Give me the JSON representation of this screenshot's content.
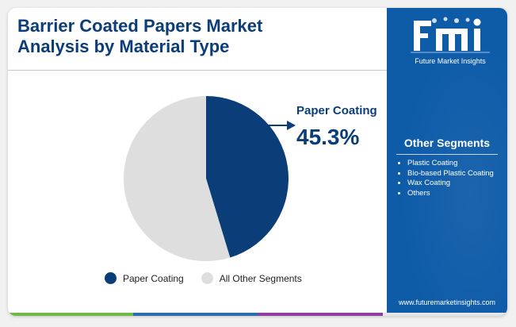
{
  "header": {
    "title_line1": "Barrier Coated Papers Market",
    "title_line2": "Analysis by Material Type"
  },
  "callout": {
    "label": "Paper Coating",
    "value": "45.3%"
  },
  "legend": {
    "items": [
      {
        "label": "Paper Coating",
        "color": "#0b3d78"
      },
      {
        "label": "All Other Segments",
        "color": "#dedede"
      }
    ]
  },
  "sidebar": {
    "brand_name": "Future Market Insights",
    "heading": "Other Segments",
    "segments": [
      "Plastic Coating",
      "Bio-based Plastic Coating",
      "Wax Coating",
      "Others"
    ],
    "website": "www.futuremarketinsights.com",
    "background": "#0e5ba8"
  },
  "bottom_bar_colors": [
    "#6dbb45",
    "#2c6cb0",
    "#8e3fa0",
    "#e6e6e6"
  ],
  "chart_data": {
    "type": "pie",
    "title": "Barrier Coated Papers Market Analysis by Material Type",
    "slices": [
      {
        "label": "Paper Coating",
        "value": 45.3,
        "color": "#0b3d78"
      },
      {
        "label": "All Other Segments",
        "value": 54.7,
        "color": "#dedede"
      }
    ],
    "start_angle": "12 o'clock, clockwise",
    "legend_position": "bottom"
  }
}
